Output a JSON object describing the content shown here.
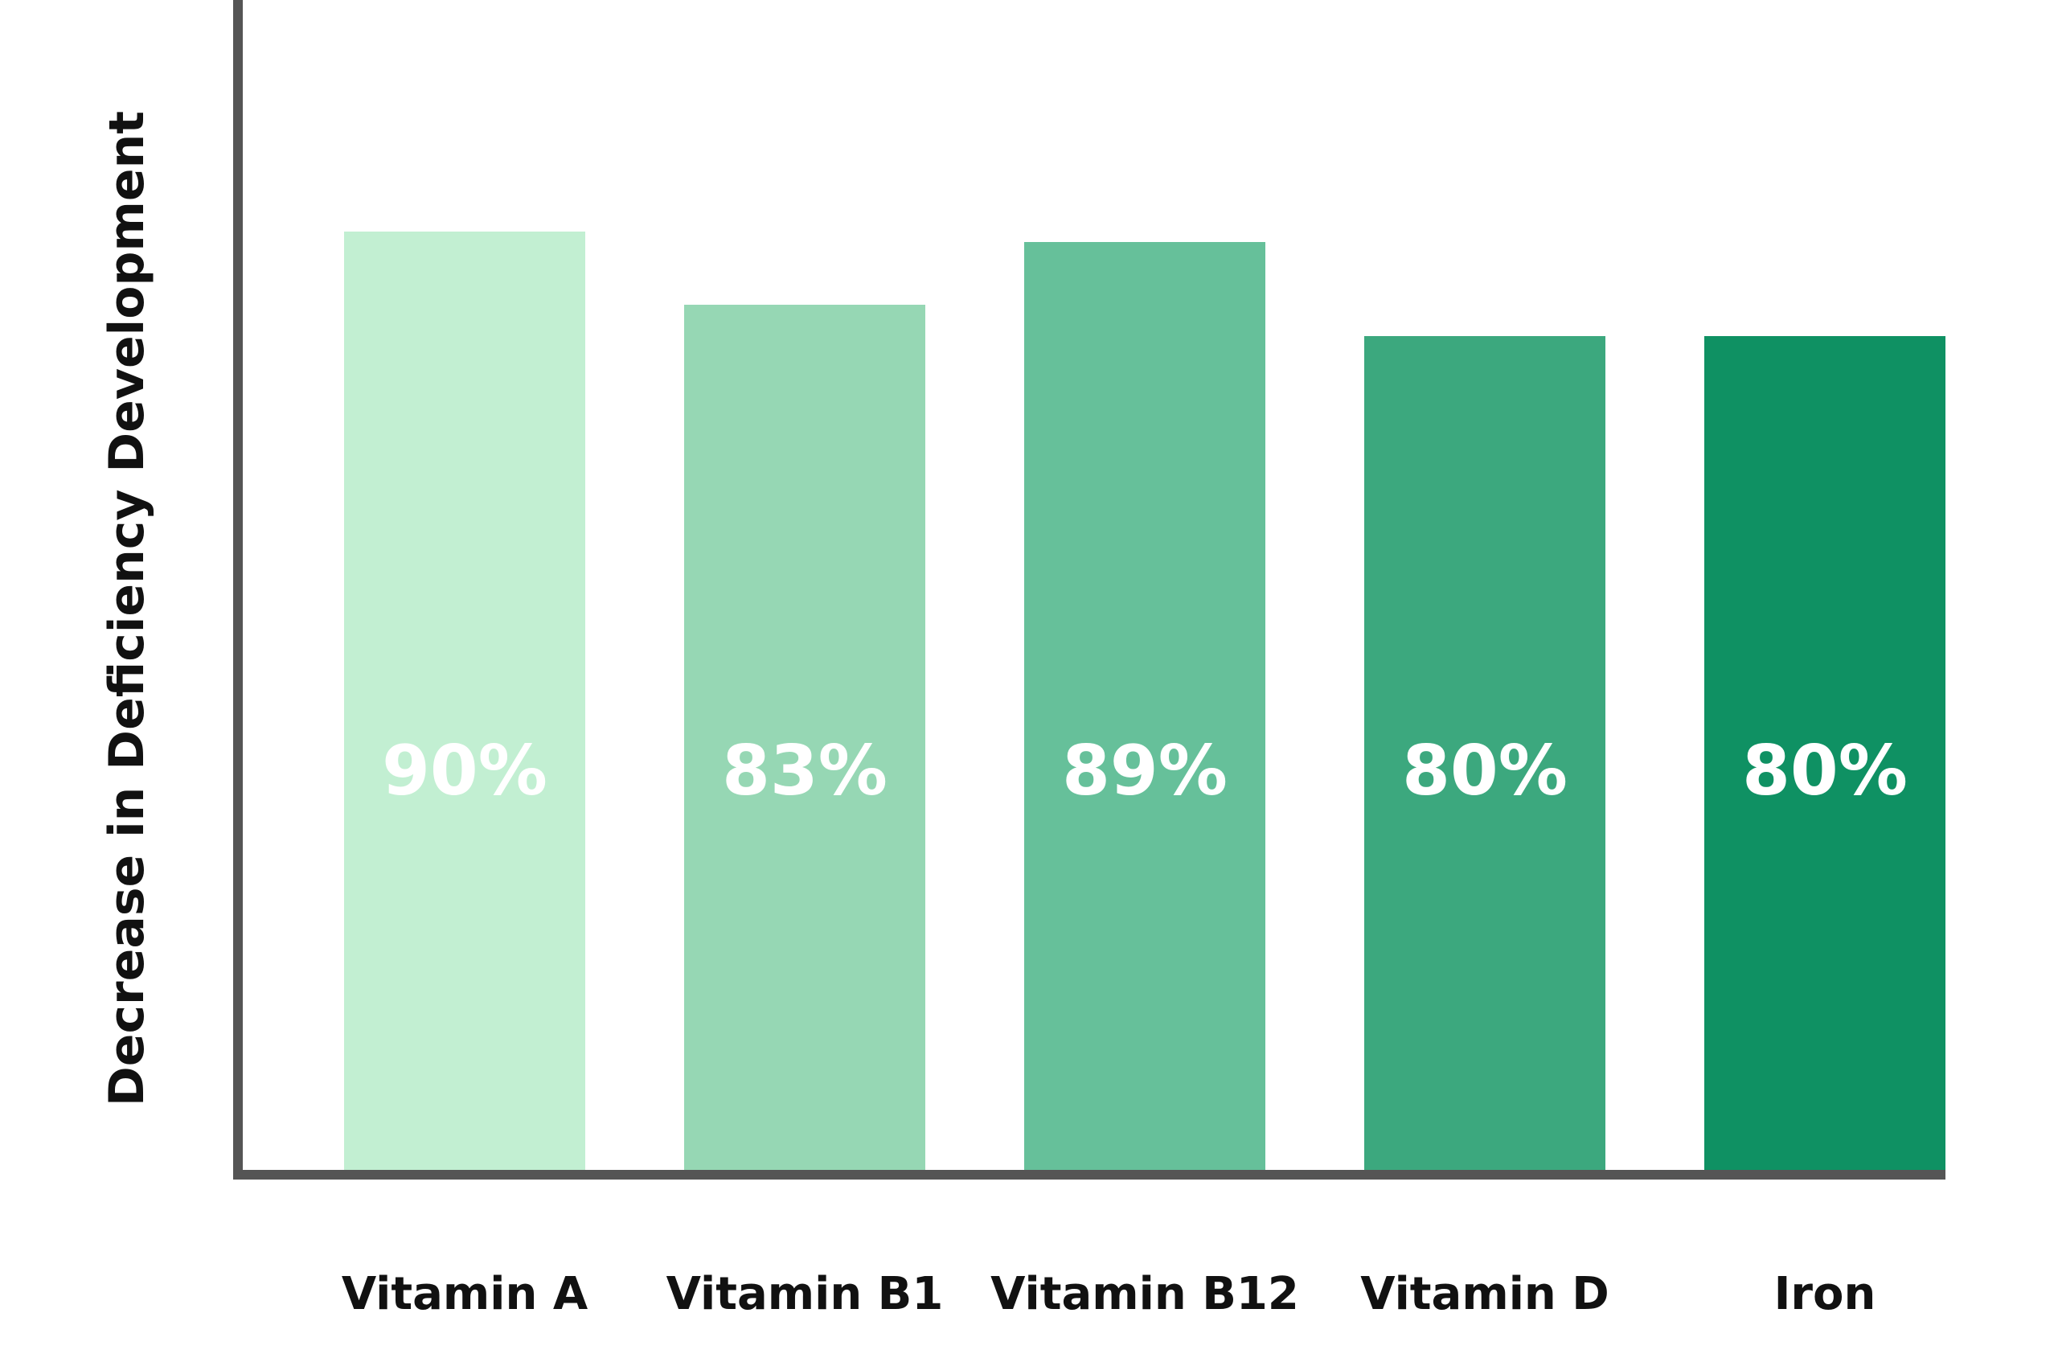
{
  "chart_data": {
    "type": "bar",
    "title": "",
    "xlabel": "",
    "ylabel": "Decrease in Deficiency Development",
    "categories": [
      "Vitamin A",
      "Vitamin B1",
      "Vitamin B12",
      "Vitamin D",
      "Iron"
    ],
    "values": [
      90,
      83,
      89,
      80,
      80
    ],
    "value_labels": [
      "90%",
      "83%",
      "89%",
      "80%",
      "80%"
    ],
    "ylim": [
      0,
      100
    ],
    "grid": false,
    "legend": "none",
    "colors": [
      "#c2efd2",
      "#96d7b4",
      "#66c09a",
      "#3ca87e",
      "#0f9163"
    ],
    "axis_color": "#555555"
  }
}
